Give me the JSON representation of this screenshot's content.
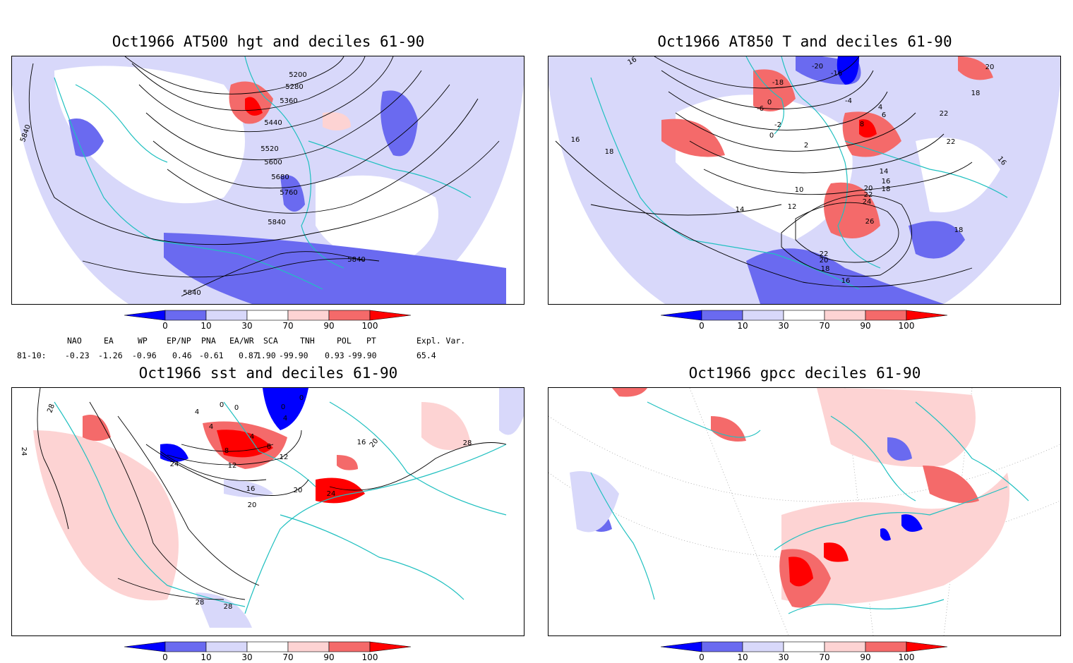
{
  "panels": {
    "hgt500": {
      "title": "Oct1966 AT500 hgt and deciles 61-90",
      "contour_labels": [
        "5200",
        "5280",
        "5360",
        "5440",
        "5520",
        "5600",
        "5680",
        "5760",
        "5840",
        "5840",
        "5840",
        "5840"
      ]
    },
    "t850": {
      "title": "Oct1966 AT850 T and deciles 61-90",
      "contour_labels": [
        "-20",
        "-16",
        "-18",
        "-6",
        "0",
        "-2",
        "0",
        "2",
        "-4",
        "4",
        "6",
        "8",
        "16",
        "18",
        "22",
        "22",
        "16",
        "14",
        "10",
        "12",
        "14",
        "16",
        "18",
        "20",
        "22",
        "24",
        "26",
        "18",
        "22",
        "20",
        "18",
        "16",
        "20",
        "18",
        "16"
      ]
    },
    "sst": {
      "title": "Oct1966 sst and deciles 61-90",
      "contour_labels": [
        "28",
        "24",
        "4",
        "0",
        "0",
        "0",
        "0",
        "4",
        "4",
        "4",
        "8",
        "8",
        "12",
        "12",
        "16",
        "16",
        "20",
        "20",
        "20",
        "24",
        "24",
        "28",
        "28",
        "28"
      ]
    },
    "gpcc": {
      "title": "Oct1966 gpcc deciles 61-90"
    }
  },
  "colorbar": {
    "tick_labels": [
      "0",
      "10",
      "30",
      "70",
      "90",
      "100"
    ],
    "colors": [
      "#0000ff",
      "#6a6af0",
      "#d8d8fa",
      "#ffffff",
      "#fdd3d3",
      "#f46a6a",
      "#ff0000"
    ]
  },
  "indices": {
    "headers": [
      "NAO",
      "EA",
      "WP",
      "EP/NP",
      "PNA",
      "EA/WR",
      "SCA",
      "TNH",
      "POL",
      "PT",
      "Expl. Var."
    ],
    "row_label": "81-10:",
    "values": [
      "-0.23",
      "-1.26",
      "-0.96",
      "0.46",
      "-0.61",
      "0.87",
      "1.90",
      "-99.90",
      "0.93",
      "-99.90",
      "65.4"
    ]
  },
  "map_colors": {
    "coast": "#20c0c0",
    "contour": "#000000",
    "grid": "#888888"
  }
}
